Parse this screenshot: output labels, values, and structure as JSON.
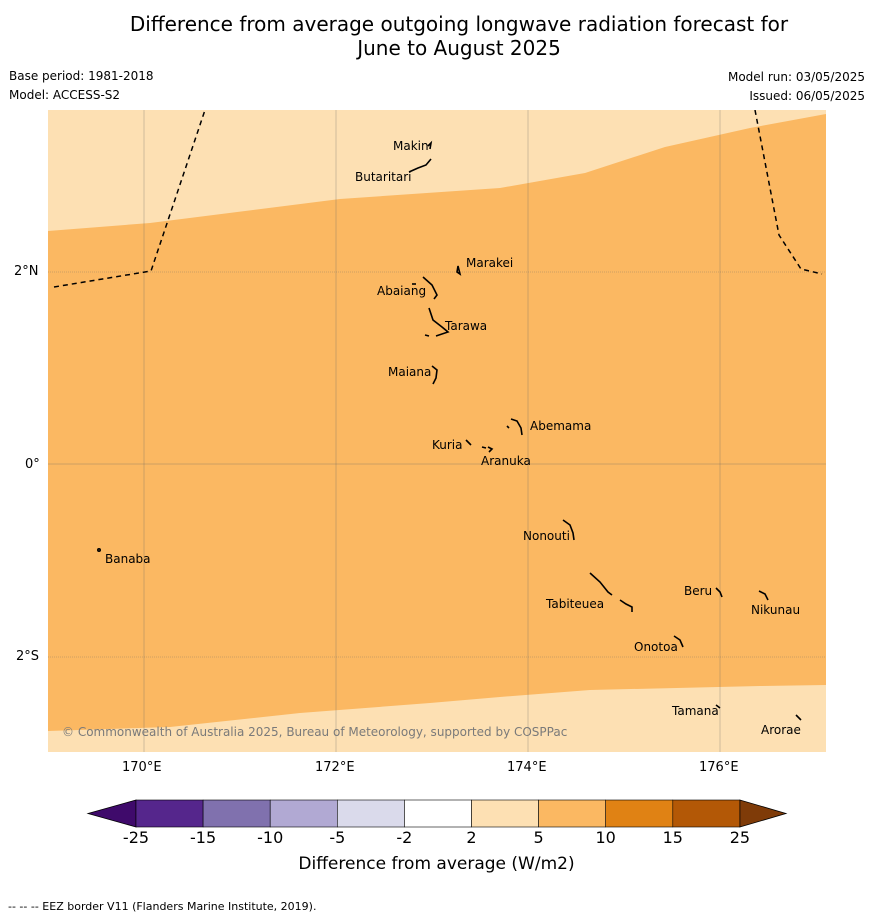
{
  "title_line1": "Difference from average outgoing longwave radiation forecast for",
  "title_line2": "June to August 2025",
  "base_period": "Base period: 1981-2018",
  "model": "Model: ACCESS-S2",
  "model_run": "Model run: 03/05/2025",
  "issued": "Issued: 06/05/2025",
  "copyright": "© Commonwealth of Australia 2025, Bureau of Meteorology, supported by COSPPac",
  "map": {
    "lat_labels": [
      "2°N",
      "0°",
      "2°S"
    ],
    "lon_labels": [
      "170°E",
      "172°E",
      "174°E",
      "176°E"
    ],
    "places": [
      {
        "name": "Makin"
      },
      {
        "name": "Butaritari"
      },
      {
        "name": "Marakei"
      },
      {
        "name": "Abaiang"
      },
      {
        "name": "Tarawa"
      },
      {
        "name": "Maiana"
      },
      {
        "name": "Abemama"
      },
      {
        "name": "Kuria"
      },
      {
        "name": "Aranuka"
      },
      {
        "name": "Nonouti"
      },
      {
        "name": "Banaba"
      },
      {
        "name": "Beru"
      },
      {
        "name": "Tabiteuea"
      },
      {
        "name": "Nikunau"
      },
      {
        "name": "Onotoa"
      },
      {
        "name": "Tamana"
      },
      {
        "name": "Arorae"
      }
    ],
    "colors": {
      "light_band": "#fde0b3",
      "mid_band": "#fbb862"
    }
  },
  "colorbar": {
    "title": "Difference from average (W/m2)",
    "ticks": [
      "-25",
      "-15",
      "-10",
      "-5",
      "-2",
      "2",
      "5",
      "10",
      "15",
      "25"
    ],
    "colors": [
      "#3f0a6b",
      "#55268c",
      "#8071ae",
      "#b1a9d3",
      "#dadaeb",
      "#ffffff",
      "#fde0b3",
      "#fbb862",
      "#e08214",
      "#b35806",
      "#7f3b08"
    ]
  },
  "footer": "--  --  -- EEZ border V11 (Flanders Marine Institute, 2019)."
}
